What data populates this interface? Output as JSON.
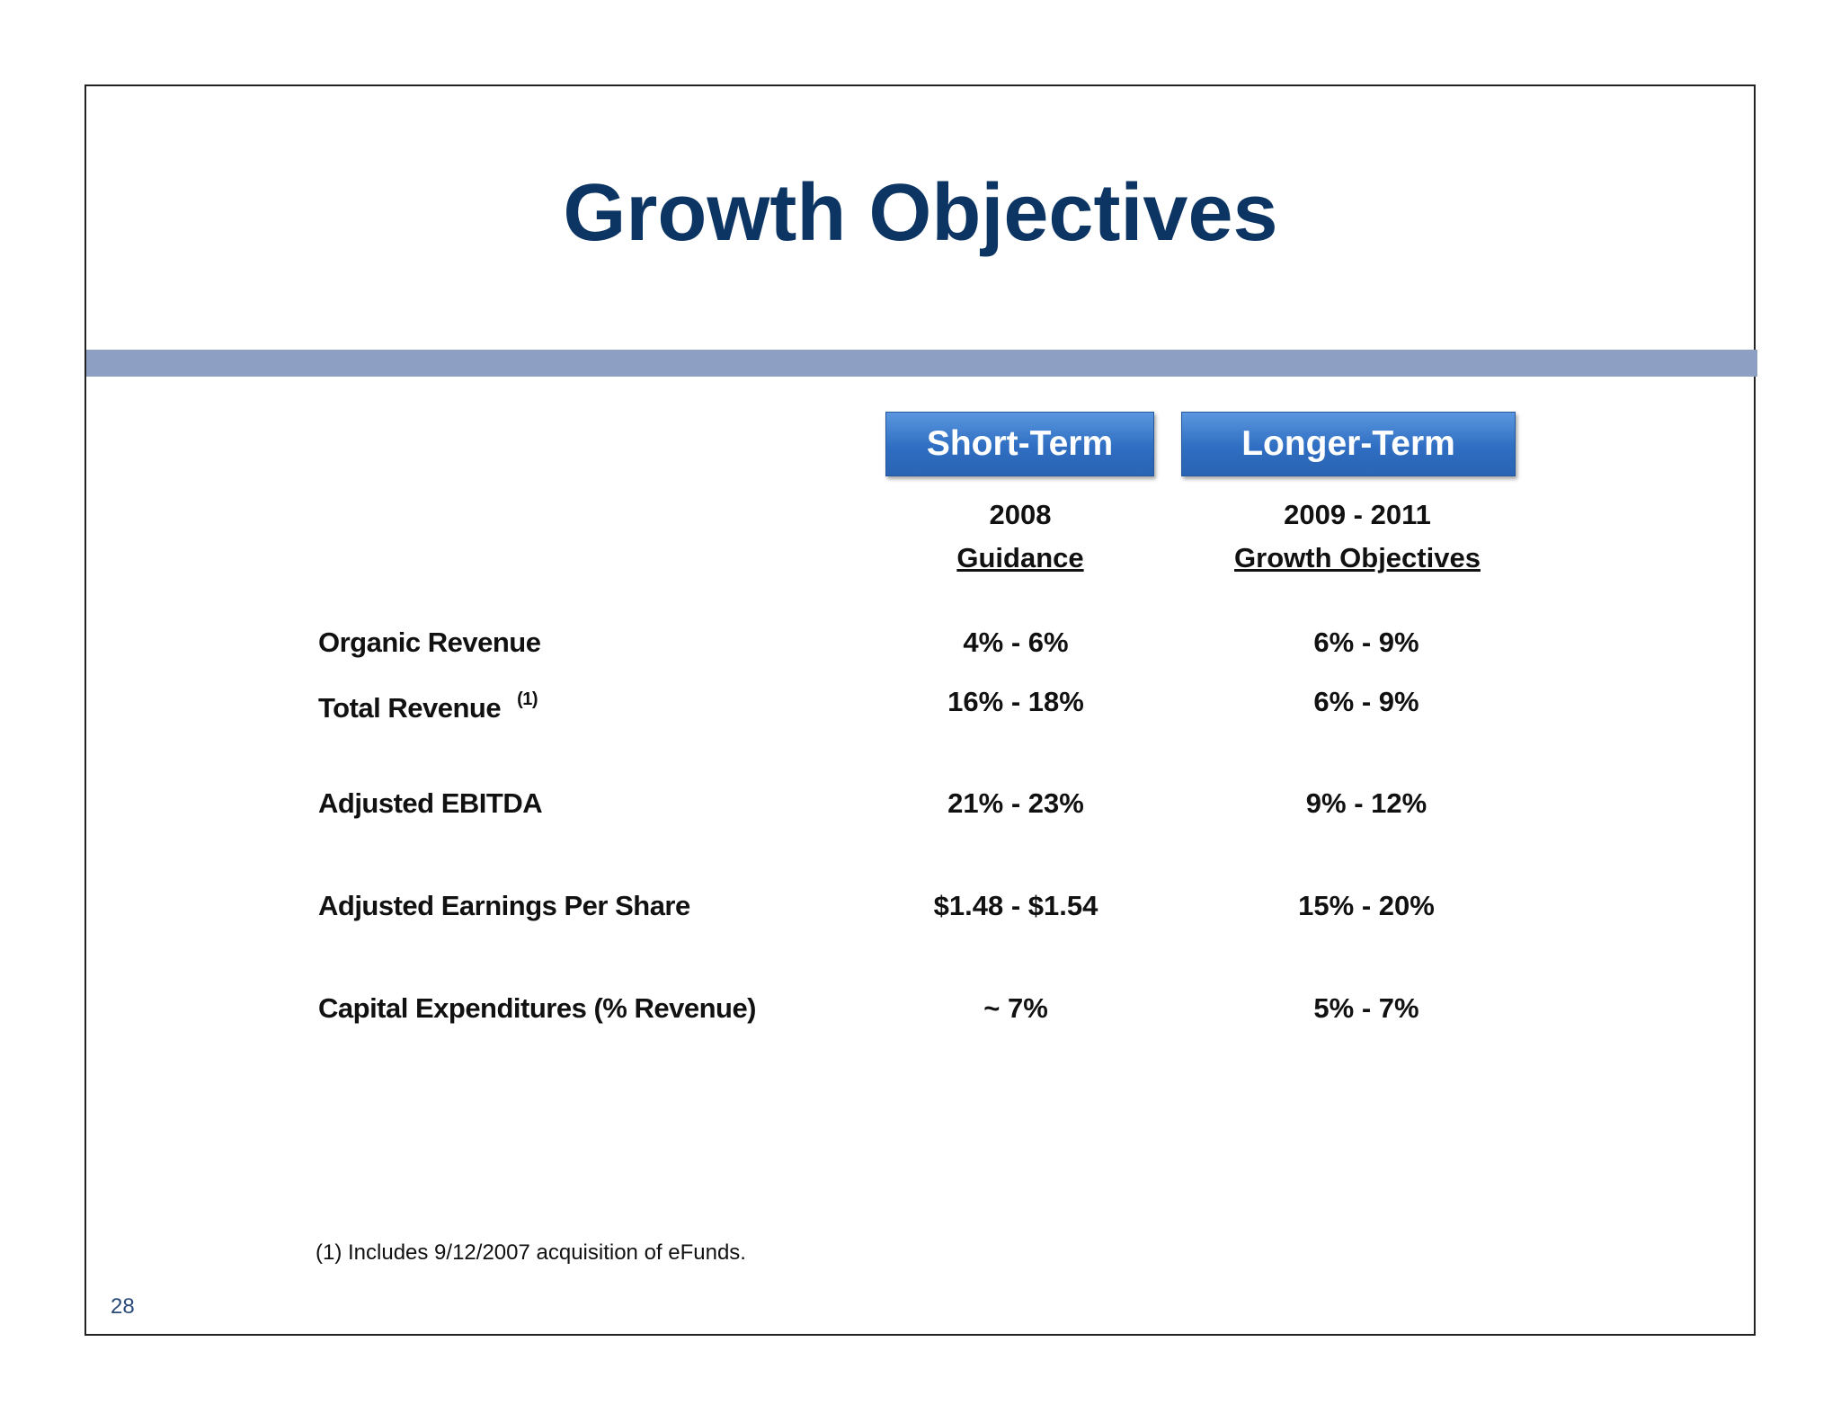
{
  "title": "Growth Objectives",
  "columns": {
    "short_term": {
      "label": "Short-Term",
      "period": "2008",
      "subtitle": "Guidance"
    },
    "longer_term": {
      "label": "Longer-Term",
      "period": "2009 - 2011",
      "subtitle": "Growth Objectives"
    }
  },
  "rows": [
    {
      "label": "Organic Revenue",
      "short": "4% - 6%",
      "long": "6% - 9%"
    },
    {
      "label": "Total Revenue",
      "footnote_ref": "(1)",
      "short": "16% - 18%",
      "long": "6% - 9%"
    },
    {
      "label": "Adjusted EBITDA",
      "short": "21% - 23%",
      "long": "9% - 12%"
    },
    {
      "label": "Adjusted Earnings Per Share",
      "short": "$1.48 - $1.54",
      "long": "15% - 20%"
    },
    {
      "label": "Capital Expenditures (% Revenue)",
      "short": "~ 7%",
      "long": "5% - 7%"
    }
  ],
  "footnote": "(1) Includes 9/12/2007 acquisition of eFunds.",
  "page_number": "28",
  "colors": {
    "title": "#0d3564",
    "band": "#8da0c4",
    "pill": "#2f6ec2"
  }
}
